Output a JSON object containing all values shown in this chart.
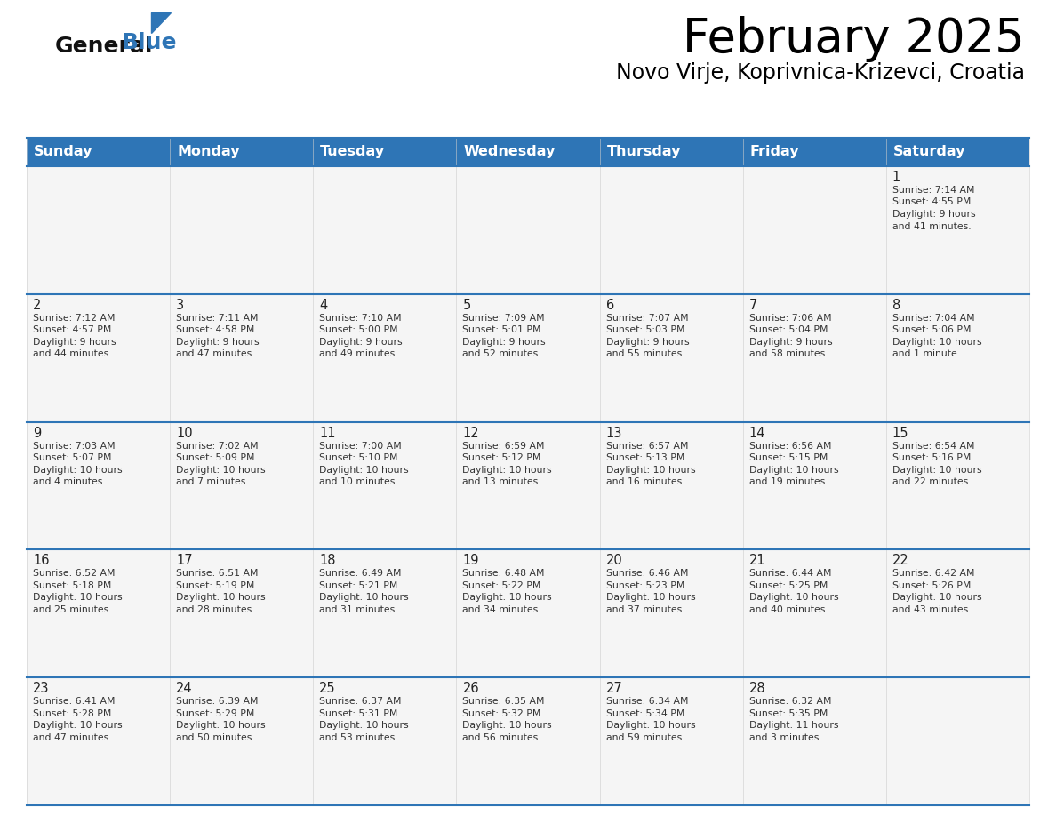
{
  "title": "February 2025",
  "subtitle": "Novo Virje, Koprivnica-Krizevci, Croatia",
  "days_of_week": [
    "Sunday",
    "Monday",
    "Tuesday",
    "Wednesday",
    "Thursday",
    "Friday",
    "Saturday"
  ],
  "header_bg": "#2E75B6",
  "header_text": "#FFFFFF",
  "cell_bg": "#F5F5F5",
  "border_color": "#2E75B6",
  "title_color": "#000000",
  "subtitle_color": "#000000",
  "logo_blue_color": "#2E75B6",
  "calendar_data": [
    {
      "day": 1,
      "col": 6,
      "row": 0,
      "sunrise": "7:14 AM",
      "sunset": "4:55 PM",
      "daylight": "9 hours and 41 minutes"
    },
    {
      "day": 2,
      "col": 0,
      "row": 1,
      "sunrise": "7:12 AM",
      "sunset": "4:57 PM",
      "daylight": "9 hours and 44 minutes"
    },
    {
      "day": 3,
      "col": 1,
      "row": 1,
      "sunrise": "7:11 AM",
      "sunset": "4:58 PM",
      "daylight": "9 hours and 47 minutes"
    },
    {
      "day": 4,
      "col": 2,
      "row": 1,
      "sunrise": "7:10 AM",
      "sunset": "5:00 PM",
      "daylight": "9 hours and 49 minutes"
    },
    {
      "day": 5,
      "col": 3,
      "row": 1,
      "sunrise": "7:09 AM",
      "sunset": "5:01 PM",
      "daylight": "9 hours and 52 minutes"
    },
    {
      "day": 6,
      "col": 4,
      "row": 1,
      "sunrise": "7:07 AM",
      "sunset": "5:03 PM",
      "daylight": "9 hours and 55 minutes"
    },
    {
      "day": 7,
      "col": 5,
      "row": 1,
      "sunrise": "7:06 AM",
      "sunset": "5:04 PM",
      "daylight": "9 hours and 58 minutes"
    },
    {
      "day": 8,
      "col": 6,
      "row": 1,
      "sunrise": "7:04 AM",
      "sunset": "5:06 PM",
      "daylight": "10 hours and 1 minute"
    },
    {
      "day": 9,
      "col": 0,
      "row": 2,
      "sunrise": "7:03 AM",
      "sunset": "5:07 PM",
      "daylight": "10 hours and 4 minutes"
    },
    {
      "day": 10,
      "col": 1,
      "row": 2,
      "sunrise": "7:02 AM",
      "sunset": "5:09 PM",
      "daylight": "10 hours and 7 minutes"
    },
    {
      "day": 11,
      "col": 2,
      "row": 2,
      "sunrise": "7:00 AM",
      "sunset": "5:10 PM",
      "daylight": "10 hours and 10 minutes"
    },
    {
      "day": 12,
      "col": 3,
      "row": 2,
      "sunrise": "6:59 AM",
      "sunset": "5:12 PM",
      "daylight": "10 hours and 13 minutes"
    },
    {
      "day": 13,
      "col": 4,
      "row": 2,
      "sunrise": "6:57 AM",
      "sunset": "5:13 PM",
      "daylight": "10 hours and 16 minutes"
    },
    {
      "day": 14,
      "col": 5,
      "row": 2,
      "sunrise": "6:56 AM",
      "sunset": "5:15 PM",
      "daylight": "10 hours and 19 minutes"
    },
    {
      "day": 15,
      "col": 6,
      "row": 2,
      "sunrise": "6:54 AM",
      "sunset": "5:16 PM",
      "daylight": "10 hours and 22 minutes"
    },
    {
      "day": 16,
      "col": 0,
      "row": 3,
      "sunrise": "6:52 AM",
      "sunset": "5:18 PM",
      "daylight": "10 hours and 25 minutes"
    },
    {
      "day": 17,
      "col": 1,
      "row": 3,
      "sunrise": "6:51 AM",
      "sunset": "5:19 PM",
      "daylight": "10 hours and 28 minutes"
    },
    {
      "day": 18,
      "col": 2,
      "row": 3,
      "sunrise": "6:49 AM",
      "sunset": "5:21 PM",
      "daylight": "10 hours and 31 minutes"
    },
    {
      "day": 19,
      "col": 3,
      "row": 3,
      "sunrise": "6:48 AM",
      "sunset": "5:22 PM",
      "daylight": "10 hours and 34 minutes"
    },
    {
      "day": 20,
      "col": 4,
      "row": 3,
      "sunrise": "6:46 AM",
      "sunset": "5:23 PM",
      "daylight": "10 hours and 37 minutes"
    },
    {
      "day": 21,
      "col": 5,
      "row": 3,
      "sunrise": "6:44 AM",
      "sunset": "5:25 PM",
      "daylight": "10 hours and 40 minutes"
    },
    {
      "day": 22,
      "col": 6,
      "row": 3,
      "sunrise": "6:42 AM",
      "sunset": "5:26 PM",
      "daylight": "10 hours and 43 minutes"
    },
    {
      "day": 23,
      "col": 0,
      "row": 4,
      "sunrise": "6:41 AM",
      "sunset": "5:28 PM",
      "daylight": "10 hours and 47 minutes"
    },
    {
      "day": 24,
      "col": 1,
      "row": 4,
      "sunrise": "6:39 AM",
      "sunset": "5:29 PM",
      "daylight": "10 hours and 50 minutes"
    },
    {
      "day": 25,
      "col": 2,
      "row": 4,
      "sunrise": "6:37 AM",
      "sunset": "5:31 PM",
      "daylight": "10 hours and 53 minutes"
    },
    {
      "day": 26,
      "col": 3,
      "row": 4,
      "sunrise": "6:35 AM",
      "sunset": "5:32 PM",
      "daylight": "10 hours and 56 minutes"
    },
    {
      "day": 27,
      "col": 4,
      "row": 4,
      "sunrise": "6:34 AM",
      "sunset": "5:34 PM",
      "daylight": "10 hours and 59 minutes"
    },
    {
      "day": 28,
      "col": 5,
      "row": 4,
      "sunrise": "6:32 AM",
      "sunset": "5:35 PM",
      "daylight": "11 hours and 3 minutes"
    }
  ]
}
